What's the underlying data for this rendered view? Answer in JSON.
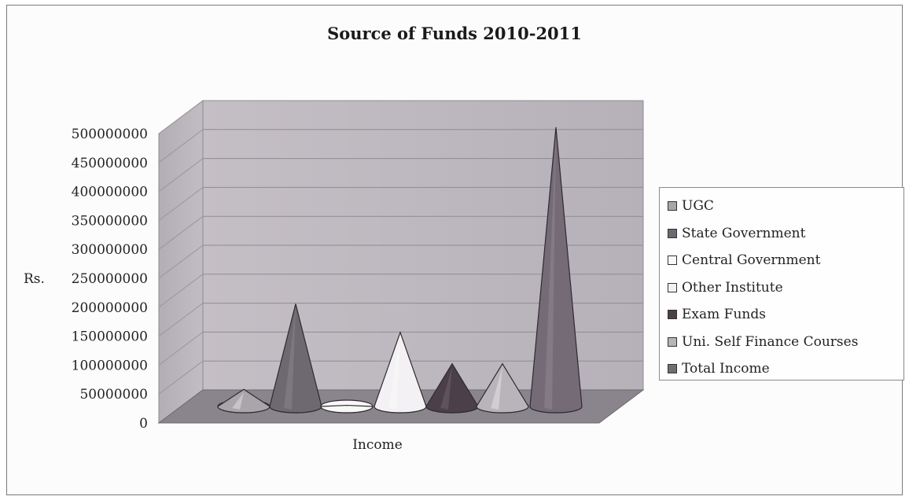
{
  "chart_data": {
    "type": "bar",
    "title": "Source of Funds 2010-2011",
    "xlabel": "Income",
    "ylabel": "Rs.",
    "ylim": [
      0,
      500000000
    ],
    "yticks": [
      0,
      50000000,
      100000000,
      150000000,
      200000000,
      250000000,
      300000000,
      350000000,
      400000000,
      450000000,
      500000000
    ],
    "ytick_labels": [
      "0",
      "50000000",
      "100000000",
      "150000000",
      "200000000",
      "250000000",
      "300000000",
      "350000000",
      "400000000",
      "450000000",
      "500000000"
    ],
    "categories": [
      "Income"
    ],
    "grid": true,
    "legend_position": "right",
    "series": [
      {
        "name": "UGC",
        "values": [
          30000000
        ],
        "color": "#a9a5ab"
      },
      {
        "name": "State Government",
        "values": [
          180000000
        ],
        "color": "#6e6970"
      },
      {
        "name": "Central Government",
        "values": [
          2000000
        ],
        "color": "#f8f8f8"
      },
      {
        "name": "Other Institute",
        "values": [
          130000000
        ],
        "color": "#f3f1f3"
      },
      {
        "name": "Exam Funds",
        "values": [
          75000000
        ],
        "color": "#4b4049"
      },
      {
        "name": "Uni. Self Finance Courses",
        "values": [
          75000000
        ],
        "color": "#b8b4ba"
      },
      {
        "name": "Total Income",
        "values": [
          490000000
        ],
        "color": "#756b76"
      }
    ]
  }
}
